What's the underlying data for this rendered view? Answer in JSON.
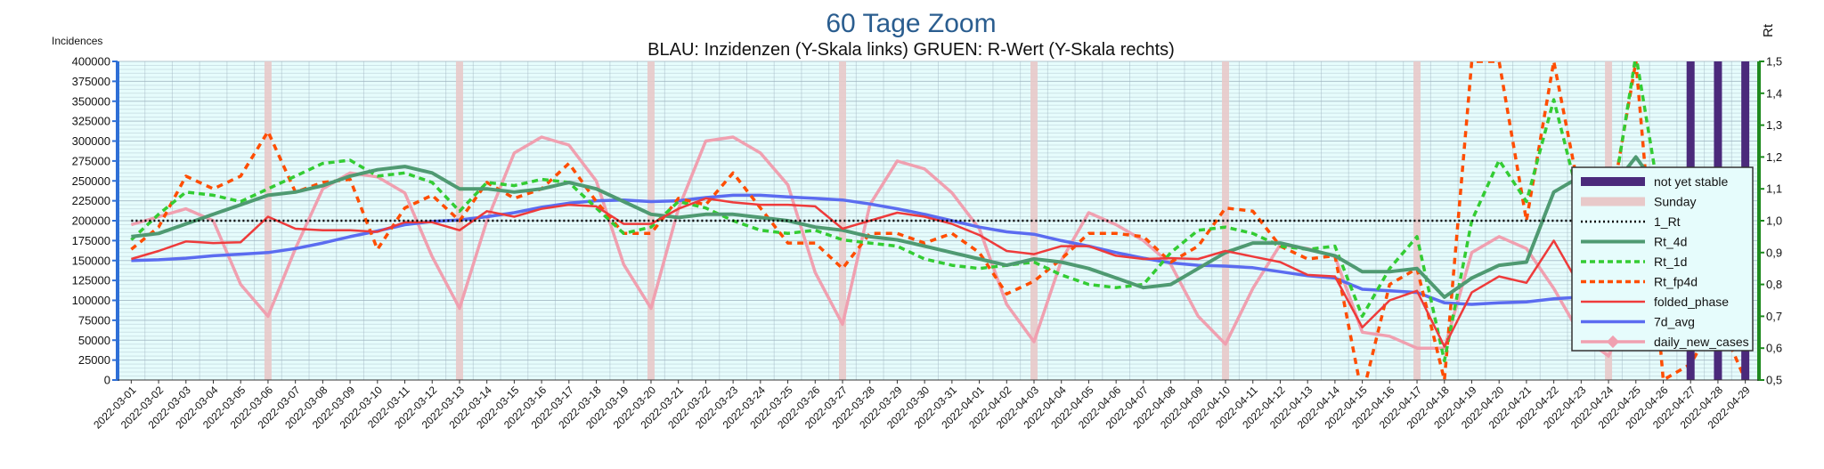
{
  "chart_data": {
    "type": "line",
    "title": "60 Tage Zoom",
    "subtitle": "BLAU: Inzidenzen (Y-Skala links)     GRUEN: R-Wert (Y-Skala rechts)",
    "ylabel": "Incidences",
    "y2label": "Rt",
    "ylim": [
      0,
      400000
    ],
    "y2lim": [
      0.5,
      1.5
    ],
    "yticks": [
      "0",
      "25000",
      "50000",
      "75000",
      "100000",
      "125000",
      "150000",
      "175000",
      "200000",
      "225000",
      "250000",
      "275000",
      "300000",
      "325000",
      "350000",
      "375000",
      "400000"
    ],
    "y2ticks": [
      "0,5",
      "0,6",
      "0,7",
      "0,8",
      "0,9",
      "1,0",
      "1,1",
      "1,2",
      "1,3",
      "1,4",
      "1,5"
    ],
    "x": [
      "2022-03-01",
      "2022-03-02",
      "2022-03-03",
      "2022-03-04",
      "2022-03-05",
      "2022-03-06",
      "2022-03-07",
      "2022-03-08",
      "2022-03-09",
      "2022-03-10",
      "2022-03-11",
      "2022-03-12",
      "2022-03-13",
      "2022-03-14",
      "2022-03-15",
      "2022-03-16",
      "2022-03-17",
      "2022-03-18",
      "2022-03-19",
      "2022-03-20",
      "2022-03-21",
      "2022-03-22",
      "2022-03-23",
      "2022-03-24",
      "2022-03-25",
      "2022-03-26",
      "2022-03-27",
      "2022-03-28",
      "2022-03-29",
      "2022-03-30",
      "2022-03-31",
      "2022-04-01",
      "2022-04-02",
      "2022-04-03",
      "2022-04-04",
      "2022-04-05",
      "2022-04-06",
      "2022-04-07",
      "2022-04-08",
      "2022-04-09",
      "2022-04-10",
      "2022-04-11",
      "2022-04-12",
      "2022-04-13",
      "2022-04-14",
      "2022-04-15",
      "2022-04-16",
      "2022-04-17",
      "2022-04-18",
      "2022-04-19",
      "2022-04-20",
      "2022-04-21",
      "2022-04-22",
      "2022-04-23",
      "2022-04-24",
      "2022-04-25",
      "2022-04-26",
      "2022-04-27",
      "2022-04-28",
      "2022-04-29"
    ],
    "sundays": [
      "2022-03-06",
      "2022-03-13",
      "2022-03-20",
      "2022-03-27",
      "2022-04-03",
      "2022-04-10",
      "2022-04-17",
      "2022-04-24"
    ],
    "not_yet_stable": [
      "2022-04-27",
      "2022-04-28",
      "2022-04-29"
    ],
    "grid": true,
    "legend_position": "right",
    "legend": [
      "not yet stable",
      "Sunday",
      "1_Rt",
      "Rt_4d",
      "Rt_1d",
      "Rt_fp4d",
      "folded_phase",
      "7d_avg",
      "daily_new_cases"
    ],
    "colors": {
      "not_yet_stable": "#4b2a7b",
      "sunday": "#e8c9c9",
      "one_rt": "#000000",
      "rt_4d": "#4f9a72",
      "rt_1d": "#33cc33",
      "rt_fp4d": "#ff4d00",
      "folded_phase": "#ee3b3b",
      "avg7d": "#5b6cf0",
      "daily": "#f0a0b0",
      "plot_bg": "#e6fcfc",
      "left_axis": "#2f6fd6",
      "right_axis": "#1f8a1f"
    },
    "series": [
      {
        "name": "daily_new_cases",
        "axis": "left",
        "values": [
          195000,
          205000,
          215000,
          200000,
          120000,
          80000,
          165000,
          240000,
          260000,
          255000,
          235000,
          155000,
          90000,
          200000,
          285000,
          305000,
          295000,
          250000,
          145000,
          90000,
          215000,
          300000,
          305000,
          285000,
          245000,
          135000,
          70000,
          220000,
          275000,
          265000,
          235000,
          190000,
          95000,
          48000,
          150000,
          210000,
          195000,
          175000,
          145000,
          80000,
          45000,
          115000,
          170000,
          165000,
          155000,
          60000,
          55000,
          40000,
          40000,
          160000,
          180000,
          165000,
          115000,
          55000,
          30000,
          110000,
          125000,
          105000,
          85000,
          70000
        ]
      },
      {
        "name": "7d_avg",
        "axis": "left",
        "values": [
          150000,
          151000,
          153000,
          156000,
          158000,
          160000,
          165000,
          172000,
          180000,
          187000,
          195000,
          199000,
          201000,
          205000,
          210000,
          217000,
          222000,
          225000,
          226000,
          224000,
          225000,
          229000,
          232000,
          232000,
          230000,
          228000,
          226000,
          221000,
          215000,
          208000,
          200000,
          192000,
          186000,
          183000,
          175000,
          168000,
          160000,
          153000,
          147000,
          144000,
          143000,
          141000,
          136000,
          131000,
          128000,
          114000,
          112000,
          110000,
          97000,
          95000,
          97000,
          98000,
          102000,
          104000,
          105000,
          112000,
          112000,
          108000,
          97000,
          88000
        ]
      },
      {
        "name": "folded_phase",
        "axis": "left",
        "values": [
          152000,
          162000,
          174000,
          172000,
          173000,
          205000,
          190000,
          188000,
          188000,
          186000,
          198000,
          198000,
          188000,
          212000,
          205000,
          215000,
          220000,
          218000,
          196000,
          196000,
          215000,
          228000,
          223000,
          220000,
          220000,
          218000,
          190000,
          200000,
          210000,
          205000,
          196000,
          182000,
          162000,
          158000,
          168000,
          168000,
          156000,
          152000,
          153000,
          152000,
          162000,
          155000,
          148000,
          132000,
          130000,
          66000,
          100000,
          112000,
          42000,
          110000,
          130000,
          122000,
          175000,
          115000,
          95000,
          220000,
          88000,
          75000,
          70000,
          57000
        ]
      },
      {
        "name": "1_Rt",
        "axis": "right",
        "values": [
          1.0,
          1.0,
          1.0,
          1.0,
          1.0,
          1.0,
          1.0,
          1.0,
          1.0,
          1.0,
          1.0,
          1.0,
          1.0,
          1.0,
          1.0,
          1.0,
          1.0,
          1.0,
          1.0,
          1.0,
          1.0,
          1.0,
          1.0,
          1.0,
          1.0,
          1.0,
          1.0,
          1.0,
          1.0,
          1.0,
          1.0,
          1.0,
          1.0,
          1.0,
          1.0,
          1.0,
          1.0,
          1.0,
          1.0,
          1.0,
          1.0,
          1.0,
          1.0,
          1.0,
          1.0,
          1.0,
          1.0,
          1.0,
          1.0,
          1.0,
          1.0,
          1.0,
          1.0,
          1.0,
          1.0,
          1.0,
          1.0,
          1.0,
          1.0,
          1.0
        ]
      },
      {
        "name": "Rt_4d",
        "axis": "right",
        "values": [
          0.95,
          0.96,
          0.99,
          1.02,
          1.05,
          1.08,
          1.09,
          1.11,
          1.14,
          1.16,
          1.17,
          1.15,
          1.1,
          1.1,
          1.09,
          1.1,
          1.12,
          1.1,
          1.06,
          1.02,
          1.01,
          1.02,
          1.02,
          1.01,
          1.0,
          0.98,
          0.97,
          0.95,
          0.94,
          0.92,
          0.9,
          0.88,
          0.86,
          0.88,
          0.87,
          0.85,
          0.82,
          0.79,
          0.8,
          0.85,
          0.9,
          0.93,
          0.93,
          0.91,
          0.89,
          0.84,
          0.84,
          0.85,
          0.76,
          0.82,
          0.86,
          0.87,
          1.09,
          1.14,
          1.09,
          1.2,
          1.08,
          1.0,
          0.92,
          0.71
        ]
      },
      {
        "name": "Rt_1d",
        "axis": "right",
        "values": [
          0.94,
          1.02,
          1.09,
          1.08,
          1.06,
          1.1,
          1.14,
          1.18,
          1.19,
          1.14,
          1.15,
          1.12,
          1.03,
          1.12,
          1.11,
          1.13,
          1.12,
          1.04,
          0.96,
          0.98,
          1.06,
          1.04,
          1.0,
          0.97,
          0.96,
          0.97,
          0.94,
          0.93,
          0.92,
          0.88,
          0.86,
          0.85,
          0.86,
          0.87,
          0.83,
          0.8,
          0.79,
          0.8,
          0.9,
          0.97,
          0.98,
          0.96,
          0.92,
          0.91,
          0.92,
          0.7,
          0.85,
          0.95,
          0.56,
          1.0,
          1.19,
          1.06,
          1.38,
          1.04,
          0.98,
          1.52,
          1.0,
          0.8,
          0.77,
          0.66
        ]
      },
      {
        "name": "Rt_fp4d",
        "axis": "right",
        "values": [
          0.91,
          0.98,
          1.14,
          1.1,
          1.14,
          1.28,
          1.09,
          1.12,
          1.13,
          0.91,
          1.04,
          1.08,
          1.0,
          1.12,
          1.07,
          1.1,
          1.18,
          1.06,
          0.96,
          0.96,
          1.07,
          1.05,
          1.15,
          1.04,
          0.93,
          0.93,
          0.85,
          0.96,
          0.96,
          0.93,
          0.96,
          0.9,
          0.77,
          0.81,
          0.88,
          0.96,
          0.96,
          0.95,
          0.87,
          0.92,
          1.04,
          1.03,
          0.92,
          0.88,
          0.89,
          0.45,
          0.8,
          0.85,
          0.5,
          1.5,
          1.5,
          1.0,
          1.5,
          1.06,
          1.0,
          1.5,
          0.5,
          0.55,
          0.7,
          0.5
        ]
      }
    ]
  }
}
